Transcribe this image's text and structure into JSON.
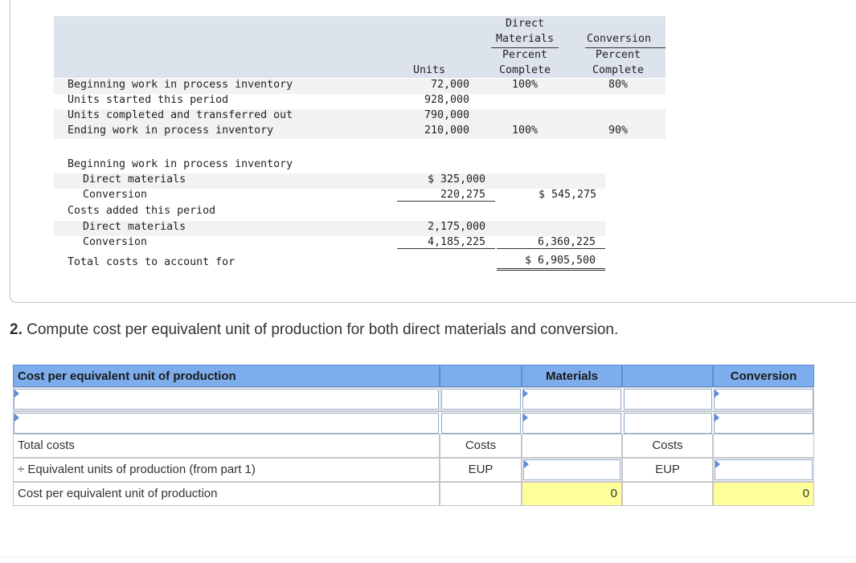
{
  "units_table": {
    "headers": {
      "direct_line1": "Direct",
      "direct_line2": "Materials",
      "conversion": "Conversion",
      "units": "Units",
      "dm_percent_line1": "Percent",
      "dm_percent_line2": "Complete",
      "conv_percent_line1": "Percent",
      "conv_percent_line2": "Complete"
    },
    "rows": [
      {
        "label": "Beginning work in process inventory",
        "units": "72,000",
        "dm": "100%",
        "conv": "80%"
      },
      {
        "label": "Units started this period",
        "units": "928,000",
        "dm": "",
        "conv": ""
      },
      {
        "label": "Units completed and transferred out",
        "units": "790,000",
        "dm": "",
        "conv": ""
      },
      {
        "label": "Ending work in process inventory",
        "units": "210,000",
        "dm": "100%",
        "conv": "90%"
      }
    ]
  },
  "cost_table": {
    "beginning_label": "Beginning work in process inventory",
    "beg_dm_label": "Direct materials",
    "beg_dm_value": "$ 325,000",
    "beg_conv_label": "Conversion",
    "beg_conv_value": "220,275",
    "beg_total": "$ 545,275",
    "added_label": "Costs added this period",
    "add_dm_label": "Direct materials",
    "add_dm_value": "2,175,000",
    "add_conv_label": "Conversion",
    "add_conv_value": "4,185,225",
    "add_total": "6,360,225",
    "total_label": "Total costs to account for",
    "total_value": "$ 6,905,500"
  },
  "question": {
    "number": "2.",
    "text": "Compute cost per equivalent unit of production for both direct materials and conversion."
  },
  "grid": {
    "header_label": "Cost per equivalent unit of production",
    "materials": "Materials",
    "conversion": "Conversion",
    "row_total_costs": "Total costs",
    "row_eup": "÷ Equivalent units of production (from part 1)",
    "row_cost_per": "Cost per equivalent unit of production",
    "costs_label": "Costs",
    "eup_label": "EUP",
    "materials_result": "0",
    "conversion_result": "0"
  }
}
